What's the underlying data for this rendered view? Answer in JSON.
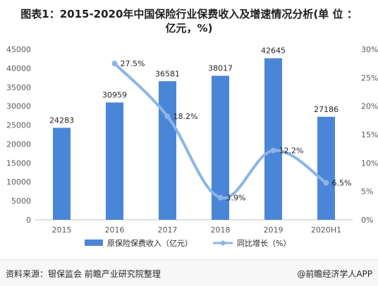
{
  "title_line1": "图表1：2015-2020年中国保险行业保费收入及增速情况分析(单 位 ：",
  "title_line2": "亿元，%)",
  "source": "资料来源：银保监会 前瞻产业研究院整理",
  "brand": "@前瞻经济学人APP",
  "chart_data": {
    "type": "bar+line",
    "categories": [
      "2015",
      "2016",
      "2017",
      "2018",
      "2019",
      "2020H1"
    ],
    "series": [
      {
        "name": "原保险保费收入（亿元）",
        "type": "bar",
        "axis": "left",
        "color": "#4a86d8",
        "values": [
          24283,
          30959,
          36581,
          38017,
          42645,
          27186
        ]
      },
      {
        "name": "同比增长（%）",
        "type": "line",
        "axis": "right",
        "color": "#8db4e6",
        "values": [
          null,
          27.5,
          18.2,
          3.9,
          12.2,
          6.5
        ],
        "labels": [
          "",
          "27.5%",
          "18.2%",
          "3.9%",
          "12.2%",
          "6.5%"
        ]
      }
    ],
    "y_left": {
      "min": 0,
      "max": 45000,
      "ticks": [
        "0",
        "5000",
        "10000",
        "15000",
        "20000",
        "25000",
        "30000",
        "35000",
        "40000",
        "45000"
      ]
    },
    "y_right": {
      "min": 0,
      "max": 30,
      "ticks": [
        "0%",
        "5%",
        "10%",
        "15%",
        "20%",
        "25%",
        "30%"
      ]
    },
    "legend_position": "bottom",
    "grid": false
  }
}
